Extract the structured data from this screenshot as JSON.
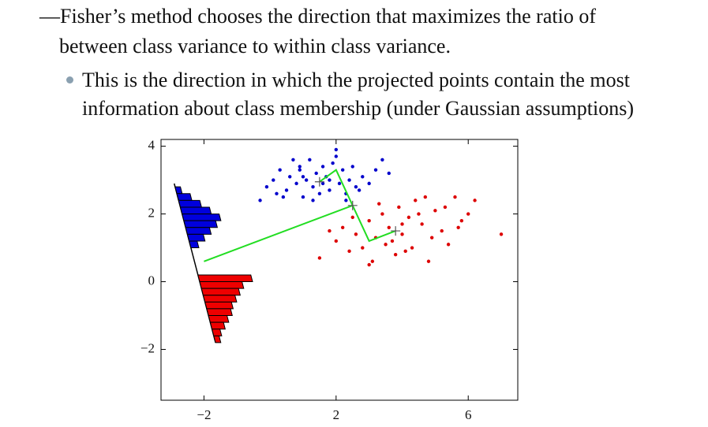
{
  "text": {
    "line1": "—Fisher’s method chooses the direction that maximizes the ratio of",
    "line2": "between class variance to within class variance.",
    "bullet_line1": "This is the direction in which the projected points contain the most",
    "bullet_line2": "information about class membership (under Gaussian assumptions)"
  },
  "chart_data": {
    "type": "scatter",
    "xlim": [
      -3.3,
      7.5
    ],
    "ylim": [
      -3.5,
      4.2
    ],
    "xticks": [
      {
        "value": -2,
        "label": "−2"
      },
      2,
      6
    ],
    "yticks": [
      {
        "value": -2,
        "label": "−2"
      },
      0,
      2,
      4
    ],
    "series": [
      {
        "color": "#0000cc",
        "x": [
          0.1,
          0.3,
          0.5,
          0.6,
          0.8,
          0.9,
          1.0,
          1.1,
          1.2,
          1.3,
          1.4,
          1.5,
          1.6,
          1.7,
          1.8,
          1.9,
          2.0,
          2.1,
          2.2,
          2.3,
          2.4,
          2.5,
          2.6,
          2.8,
          3.0,
          3.2,
          3.4,
          3.6,
          0.2,
          0.7,
          1.0,
          1.3,
          1.6,
          2.0,
          2.3,
          0.4,
          0.9,
          1.8,
          2.7,
          -0.3,
          -0.1
        ],
        "values": [
          3.0,
          3.3,
          2.7,
          3.1,
          2.9,
          3.4,
          2.5,
          3.0,
          3.6,
          2.8,
          3.2,
          2.6,
          3.4,
          3.1,
          2.7,
          3.5,
          3.9,
          2.9,
          3.3,
          2.6,
          3.0,
          3.4,
          2.8,
          3.1,
          2.9,
          3.3,
          3.6,
          3.2,
          2.6,
          3.6,
          3.1,
          2.4,
          2.9,
          3.7,
          2.4,
          2.5,
          3.3,
          3.0,
          2.7,
          2.4,
          2.8
        ]
      },
      {
        "color": "#dd0000",
        "x": [
          1.5,
          1.8,
          2.0,
          2.2,
          2.4,
          2.6,
          2.8,
          3.0,
          3.1,
          3.2,
          3.4,
          3.5,
          3.6,
          3.8,
          3.9,
          4.0,
          4.2,
          4.3,
          4.4,
          4.6,
          4.8,
          5.0,
          5.2,
          5.4,
          5.6,
          5.8,
          6.0,
          2.5,
          3.3,
          3.7,
          4.1,
          4.5,
          4.9,
          5.3,
          5.7,
          6.2,
          7.0,
          3.0,
          4.0,
          4.7
        ],
        "values": [
          0.7,
          1.5,
          1.2,
          1.6,
          0.9,
          1.4,
          1.0,
          1.8,
          0.6,
          1.3,
          2.0,
          1.1,
          1.6,
          0.8,
          2.2,
          1.4,
          1.9,
          1.0,
          2.4,
          1.7,
          0.6,
          2.1,
          1.5,
          1.1,
          2.5,
          1.8,
          2.0,
          1.9,
          2.3,
          1.2,
          0.9,
          2.0,
          1.3,
          2.2,
          1.6,
          2.4,
          1.4,
          0.5,
          1.7,
          2.5
        ]
      }
    ],
    "lines": [
      {
        "color": "#22dd22",
        "x": [
          -2,
          2.5
        ],
        "values": [
          0.6,
          2.25
        ]
      },
      {
        "color": "#22dd22",
        "x": [
          1.5,
          2.0,
          2.5,
          3.0,
          3.8
        ],
        "values": [
          2.95,
          3.3,
          2.25,
          1.2,
          1.5
        ]
      }
    ],
    "histograms": [
      {
        "color": "#0000dd",
        "bins": [
          2.8,
          2.6,
          2.4,
          2.2,
          2.0,
          1.8,
          1.6,
          1.4,
          1.2,
          1.0
        ],
        "values": [
          2,
          5,
          8,
          11,
          14,
          12,
          9,
          6,
          3
        ]
      },
      {
        "color": "#ee0000",
        "bins": [
          0.2,
          0.0,
          -0.2,
          -0.4,
          -0.6,
          -0.8,
          -1.0,
          -1.2,
          -1.4,
          -1.6,
          -1.8
        ],
        "values": [
          20,
          16,
          14,
          12,
          10,
          9,
          7,
          5,
          3,
          2
        ]
      }
    ]
  }
}
